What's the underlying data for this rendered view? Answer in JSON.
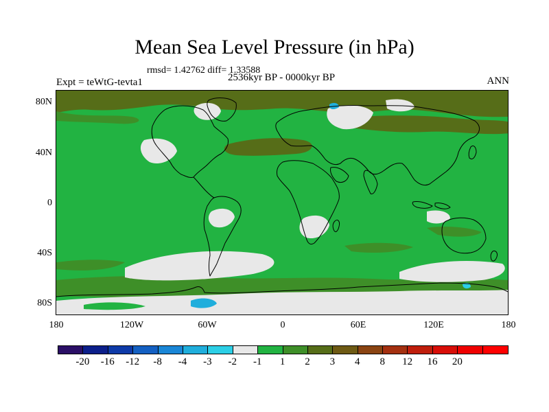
{
  "map": {
    "title": "Mean Sea Level Pressure (in hPa)",
    "stats_text": "rmsd= 1.42762 diff= 1.33588",
    "period_text": "2536kyr BP - 0000kyr BP",
    "experiment_text": "Expt = teWtG-tevta1",
    "season_text": "ANN",
    "lat_labels": [
      "80N",
      "40N",
      "0",
      "40S",
      "80S"
    ],
    "lon_labels": [
      "180",
      "120W",
      "60W",
      "0",
      "60E",
      "120E",
      "180"
    ]
  },
  "colorbar": {
    "colors": [
      "#2b0f66",
      "#0c1f8a",
      "#0e3aa8",
      "#1460c2",
      "#1a86d6",
      "#20aedc",
      "#2ccfe6",
      "#e8e8e8",
      "#22b342",
      "#3e8f28",
      "#566d18",
      "#6e5a14",
      "#8a4412",
      "#a43010",
      "#bf1e0c",
      "#d80e08",
      "#ef0000",
      "#ff0000"
    ],
    "labels": [
      "-20",
      "-16",
      "-12",
      "-8",
      "-4",
      "-3",
      "-2",
      "-1",
      "1",
      "2",
      "3",
      "4",
      "8",
      "12",
      "16",
      "20"
    ]
  },
  "palette": {
    "green": "#22b342",
    "olive": "#566d18",
    "dark_olive": "#3e8f28",
    "white": "#e8e8e8",
    "cyan": "#20aedc"
  }
}
